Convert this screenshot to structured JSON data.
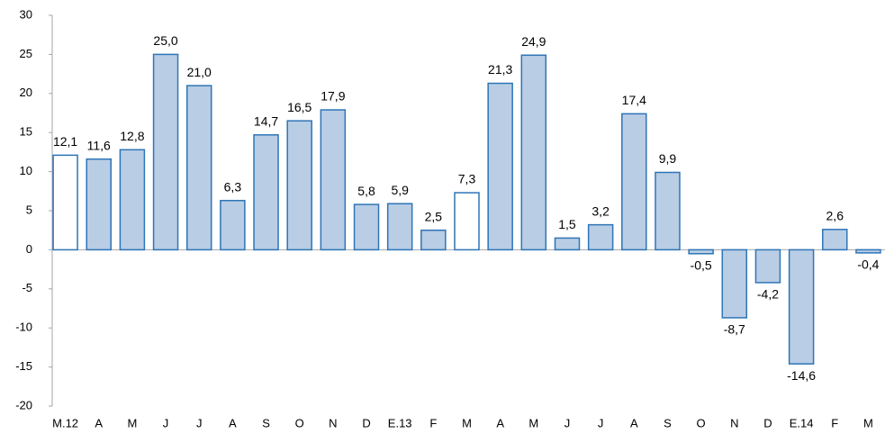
{
  "chart_data": {
    "type": "bar",
    "categories": [
      "M.12",
      "A",
      "M",
      "J",
      "J",
      "A",
      "S",
      "O",
      "N",
      "D",
      "E.13",
      "F",
      "M",
      "A",
      "M",
      "J",
      "J",
      "A",
      "S",
      "O",
      "N",
      "D",
      "E.14",
      "F",
      "M"
    ],
    "values": [
      12.1,
      11.6,
      12.8,
      25.0,
      21.0,
      6.3,
      14.7,
      16.5,
      17.9,
      5.8,
      5.9,
      2.5,
      7.3,
      21.3,
      24.9,
      1.5,
      3.2,
      17.4,
      9.9,
      -0.5,
      -8.7,
      -4.2,
      -14.6,
      2.6,
      -0.4
    ],
    "value_labels": [
      "12,1",
      "11,6",
      "12,8",
      "25,0",
      "21,0",
      "6,3",
      "14,7",
      "16,5",
      "17,9",
      "5,8",
      "5,9",
      "2,5",
      "7,3",
      "21,3",
      "24,9",
      "1,5",
      "3,2",
      "17,4",
      "9,9",
      "-0,5",
      "-8,7",
      "-4,2",
      "-14,6",
      "2,6",
      "-0,4"
    ],
    "colors": [
      "#ffffff",
      "#b9cde5",
      "#b9cde5",
      "#b9cde5",
      "#b9cde5",
      "#b9cde5",
      "#b9cde5",
      "#b9cde5",
      "#b9cde5",
      "#b9cde5",
      "#b9cde5",
      "#b9cde5",
      "#ffffff",
      "#b9cde5",
      "#b9cde5",
      "#b9cde5",
      "#b9cde5",
      "#b9cde5",
      "#b9cde5",
      "#b9cde5",
      "#b9cde5",
      "#b9cde5",
      "#b9cde5",
      "#b9cde5",
      "#b9cde5"
    ],
    "edge_color": "#2e75b6",
    "ylim": [
      -20,
      30
    ],
    "yticks": [
      -20,
      -15,
      -10,
      -5,
      0,
      5,
      10,
      15,
      20,
      25,
      30
    ],
    "grid": false
  }
}
